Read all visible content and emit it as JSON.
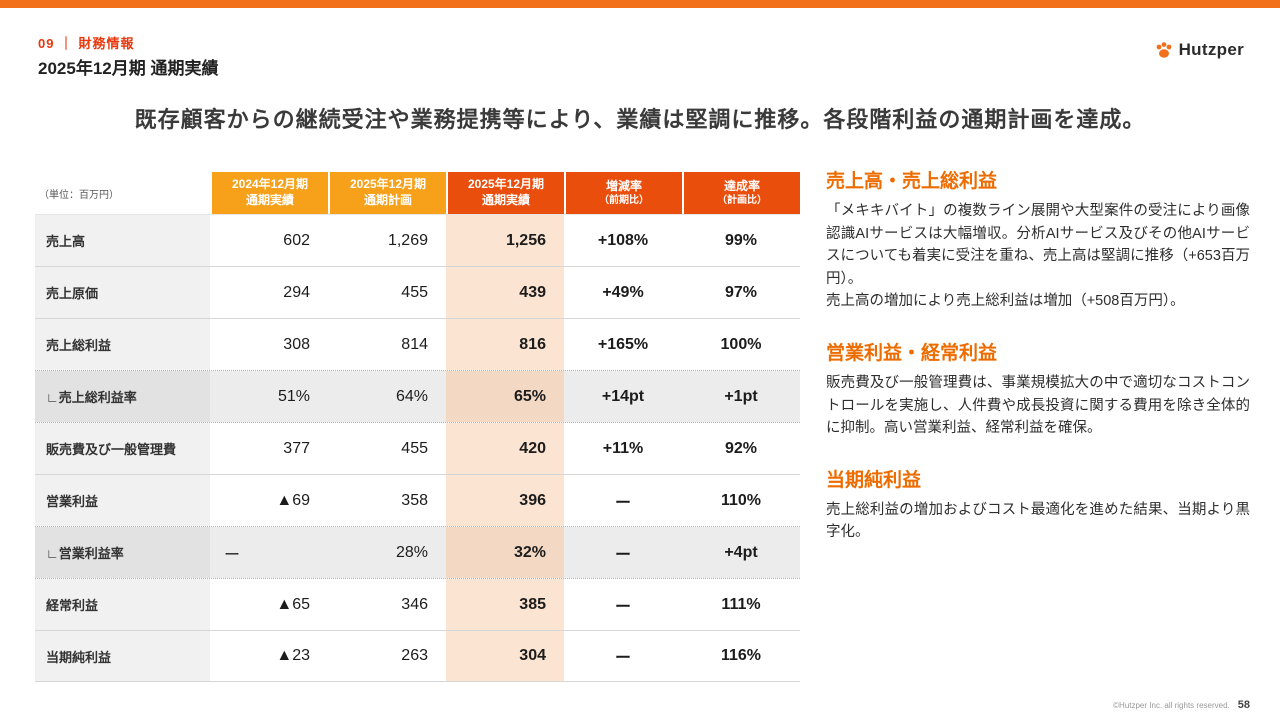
{
  "colors": {
    "top_bar": "#F3701B",
    "section_tag": "#E8380D",
    "header_light": "#F7A11B",
    "header_dark": "#EA4E0D",
    "highlight_bg": "#FBE4D1",
    "section_heading": "#ED6C00"
  },
  "header": {
    "section_number": "09",
    "section_divider": "｜",
    "section_label": "財務情報",
    "title": "2025年12月期 通期実績",
    "logo_text": "Hutzper"
  },
  "headline": "既存顧客からの継続受注や業務提携等により、業績は堅調に推移。各段階利益の通期計画を達成。",
  "table": {
    "unit_label": "（単位：百万円）",
    "columns": [
      {
        "line1": "2024年12月期",
        "line2": "通期実績",
        "style": "orange",
        "small2": false
      },
      {
        "line1": "2025年12月期",
        "line2": "通期計画",
        "style": "orange",
        "small2": false
      },
      {
        "line1": "2025年12月期",
        "line2": "通期実績",
        "style": "red",
        "small2": false
      },
      {
        "line1": "増減率",
        "line2": "（前期比）",
        "style": "red",
        "small2": true
      },
      {
        "line1": "達成率",
        "line2": "（計画比）",
        "style": "red",
        "small2": true
      }
    ],
    "rows": [
      {
        "label": "売上高",
        "values": [
          "602",
          "1,269",
          "1,256",
          "+108%",
          "99%"
        ],
        "rate": false
      },
      {
        "label": "売上原価",
        "values": [
          "294",
          "455",
          "439",
          "+49%",
          "97%"
        ],
        "rate": false
      },
      {
        "label": "売上総利益",
        "values": [
          "308",
          "814",
          "816",
          "+165%",
          "100%"
        ],
        "rate": false
      },
      {
        "label": "∟売上総利益率",
        "values": [
          "51%",
          "64%",
          "65%",
          "+14pt",
          "+1pt"
        ],
        "rate": true
      },
      {
        "label": "販売費及び一般管理費",
        "values": [
          "377",
          "455",
          "420",
          "+11%",
          "92%"
        ],
        "rate": false
      },
      {
        "label": "営業利益",
        "values": [
          "▲69",
          "358",
          "396",
          "ー",
          "110%"
        ],
        "rate": false
      },
      {
        "label": "∟営業利益率",
        "values": [
          "ー",
          "28%",
          "32%",
          "ー",
          "+4pt"
        ],
        "rate": true
      },
      {
        "label": "経常利益",
        "values": [
          "▲65",
          "346",
          "385",
          "ー",
          "111%"
        ],
        "rate": false
      },
      {
        "label": "当期純利益",
        "values": [
          "▲23",
          "263",
          "304",
          "ー",
          "116%"
        ],
        "rate": false
      }
    ]
  },
  "sections": [
    {
      "heading": "売上高・売上総利益",
      "body": "「メキキバイト」の複数ライン展開や大型案件の受注により画像認識AIサービスは大幅増収。分析AIサービス及びその他AIサービスについても着実に受注を重ね、売上高は堅調に推移（+653百万円）。\n売上高の増加により売上総利益は増加（+508百万円）。"
    },
    {
      "heading": "営業利益・経常利益",
      "body": "販売費及び一般管理費は、事業規模拡大の中で適切なコストコントロールを実施し、人件費や成長投資に関する費用を除き全体的に抑制。高い営業利益、経常利益を確保。"
    },
    {
      "heading": "当期純利益",
      "body": "売上総利益の増加およびコスト最適化を進めた結果、当期より黒字化。"
    }
  ],
  "footer": {
    "copyright": "©Hutzper Inc. all rights reserved.",
    "page_number": "58"
  }
}
